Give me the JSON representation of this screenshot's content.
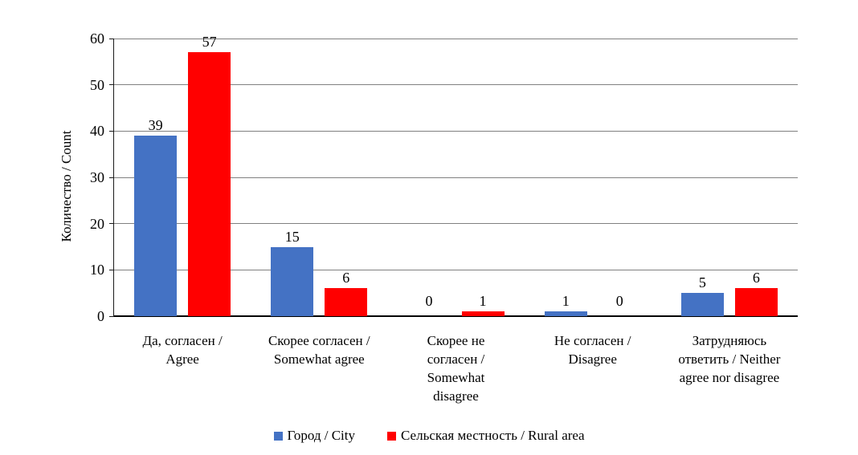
{
  "chart_data": {
    "type": "bar",
    "title": "",
    "categories": [
      "Да, согласен / Agree",
      "Скорее согласен / Somewhat agree",
      "Скорее не согласен / Somewhat disagree",
      "Не согласен / Disagree",
      "Затрудняюсь ответить / Neither agree nor disagree"
    ],
    "category_label_lines": [
      [
        "Да, согласен /",
        "Agree"
      ],
      [
        "Скорее согласен /",
        "Somewhat agree"
      ],
      [
        "Скорее не",
        "согласен /",
        "Somewhat",
        "disagree"
      ],
      [
        "Не согласен /",
        "Disagree"
      ],
      [
        "Затрудняюсь",
        "ответить / Neither",
        "agree nor disagree"
      ]
    ],
    "series": [
      {
        "name": "Город / City",
        "color": "#4472C4",
        "values": [
          39,
          15,
          0,
          1,
          5
        ]
      },
      {
        "name": "Сельская местность / Rural area",
        "color": "#FF0000",
        "values": [
          57,
          6,
          1,
          0,
          6
        ]
      }
    ],
    "xlabel": "",
    "ylabel": "Количество / Count",
    "ylim": [
      0,
      60
    ],
    "yticks": [
      0,
      10,
      20,
      30,
      40,
      50,
      60
    ],
    "grid": true,
    "legend_position": "bottom",
    "colors": {
      "city_bar": "#4472C4",
      "rural_bar": "#FF0000",
      "gridline": "#808080",
      "axis": "#000000",
      "background": "#FFFFFF",
      "text": "#000000"
    }
  }
}
